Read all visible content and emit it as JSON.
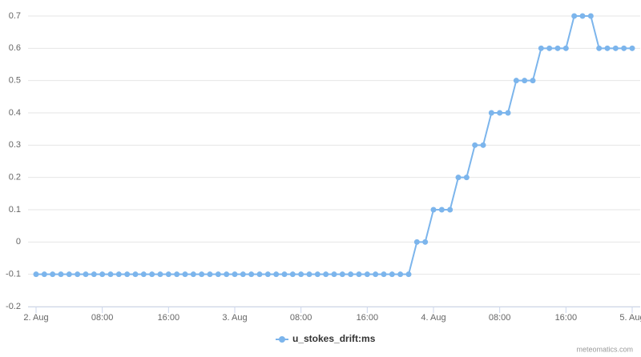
{
  "chart_data": {
    "type": "line",
    "categories": [
      "2. Aug",
      null,
      null,
      null,
      null,
      null,
      null,
      null,
      "08:00",
      null,
      null,
      null,
      null,
      null,
      null,
      null,
      "16:00",
      null,
      null,
      null,
      null,
      null,
      null,
      null,
      "3. Aug",
      null,
      null,
      null,
      null,
      null,
      null,
      null,
      "08:00",
      null,
      null,
      null,
      null,
      null,
      null,
      null,
      "16:00",
      null,
      null,
      null,
      null,
      null,
      null,
      null,
      "4. Aug",
      null,
      null,
      null,
      null,
      null,
      null,
      null,
      "08:00",
      null,
      null,
      null,
      null,
      null,
      null,
      null,
      "16:00",
      null,
      null,
      null,
      null,
      null,
      null,
      null,
      "5. Aug"
    ],
    "series": [
      {
        "name": "u_stokes_drift:ms",
        "color": "#7cb5ec",
        "values": [
          -0.1,
          -0.1,
          -0.1,
          -0.1,
          -0.1,
          -0.1,
          -0.1,
          -0.1,
          -0.1,
          -0.1,
          -0.1,
          -0.1,
          -0.1,
          -0.1,
          -0.1,
          -0.1,
          -0.1,
          -0.1,
          -0.1,
          -0.1,
          -0.1,
          -0.1,
          -0.1,
          -0.1,
          -0.1,
          -0.1,
          -0.1,
          -0.1,
          -0.1,
          -0.1,
          -0.1,
          -0.1,
          -0.1,
          -0.1,
          -0.1,
          -0.1,
          -0.1,
          -0.1,
          -0.1,
          -0.1,
          -0.1,
          -0.1,
          -0.1,
          -0.1,
          -0.1,
          -0.1,
          0,
          0,
          0.1,
          0.1,
          0.1,
          0.2,
          0.2,
          0.3,
          0.3,
          0.4,
          0.4,
          0.4,
          0.5,
          0.5,
          0.5,
          0.6,
          0.6,
          0.6,
          0.6,
          0.7,
          0.7,
          0.7,
          0.6,
          0.6,
          0.6,
          0.6,
          0.6
        ]
      }
    ],
    "ylim": [
      -0.2,
      0.7
    ],
    "yticks": [
      -0.2,
      -0.1,
      0,
      0.1,
      0.2,
      0.3,
      0.4,
      0.5,
      0.6,
      0.7
    ],
    "grid": true,
    "legend": "bottom",
    "credits": "meteomatics.com"
  }
}
